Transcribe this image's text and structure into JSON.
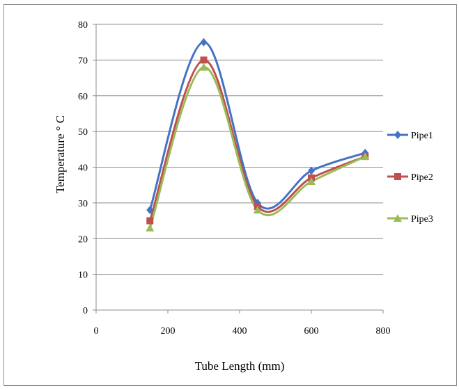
{
  "chart_data": {
    "type": "line",
    "smooth": true,
    "xlabel": "Tube Length (mm)",
    "ylabel": "Temperature ° C",
    "xlim": [
      0,
      800
    ],
    "ylim": [
      0,
      80
    ],
    "xticks": [
      0,
      200,
      400,
      600,
      800
    ],
    "yticks": [
      0,
      10,
      20,
      30,
      40,
      50,
      60,
      70,
      80
    ],
    "grid": "horizontal",
    "legend": "right",
    "series": [
      {
        "name": "Pipe1",
        "color": "#4472c4",
        "marker": "diamond",
        "x": [
          150,
          300,
          450,
          600,
          750
        ],
        "y": [
          28,
          75,
          30,
          39,
          44
        ]
      },
      {
        "name": "Pipe2",
        "color": "#c0504d",
        "marker": "square",
        "x": [
          150,
          300,
          450,
          600,
          750
        ],
        "y": [
          25,
          70,
          29,
          37,
          43
        ]
      },
      {
        "name": "Pipe3",
        "color": "#9bbb59",
        "marker": "triangle",
        "x": [
          150,
          300,
          450,
          600,
          750
        ],
        "y": [
          23,
          68,
          28,
          36,
          43
        ]
      }
    ]
  }
}
